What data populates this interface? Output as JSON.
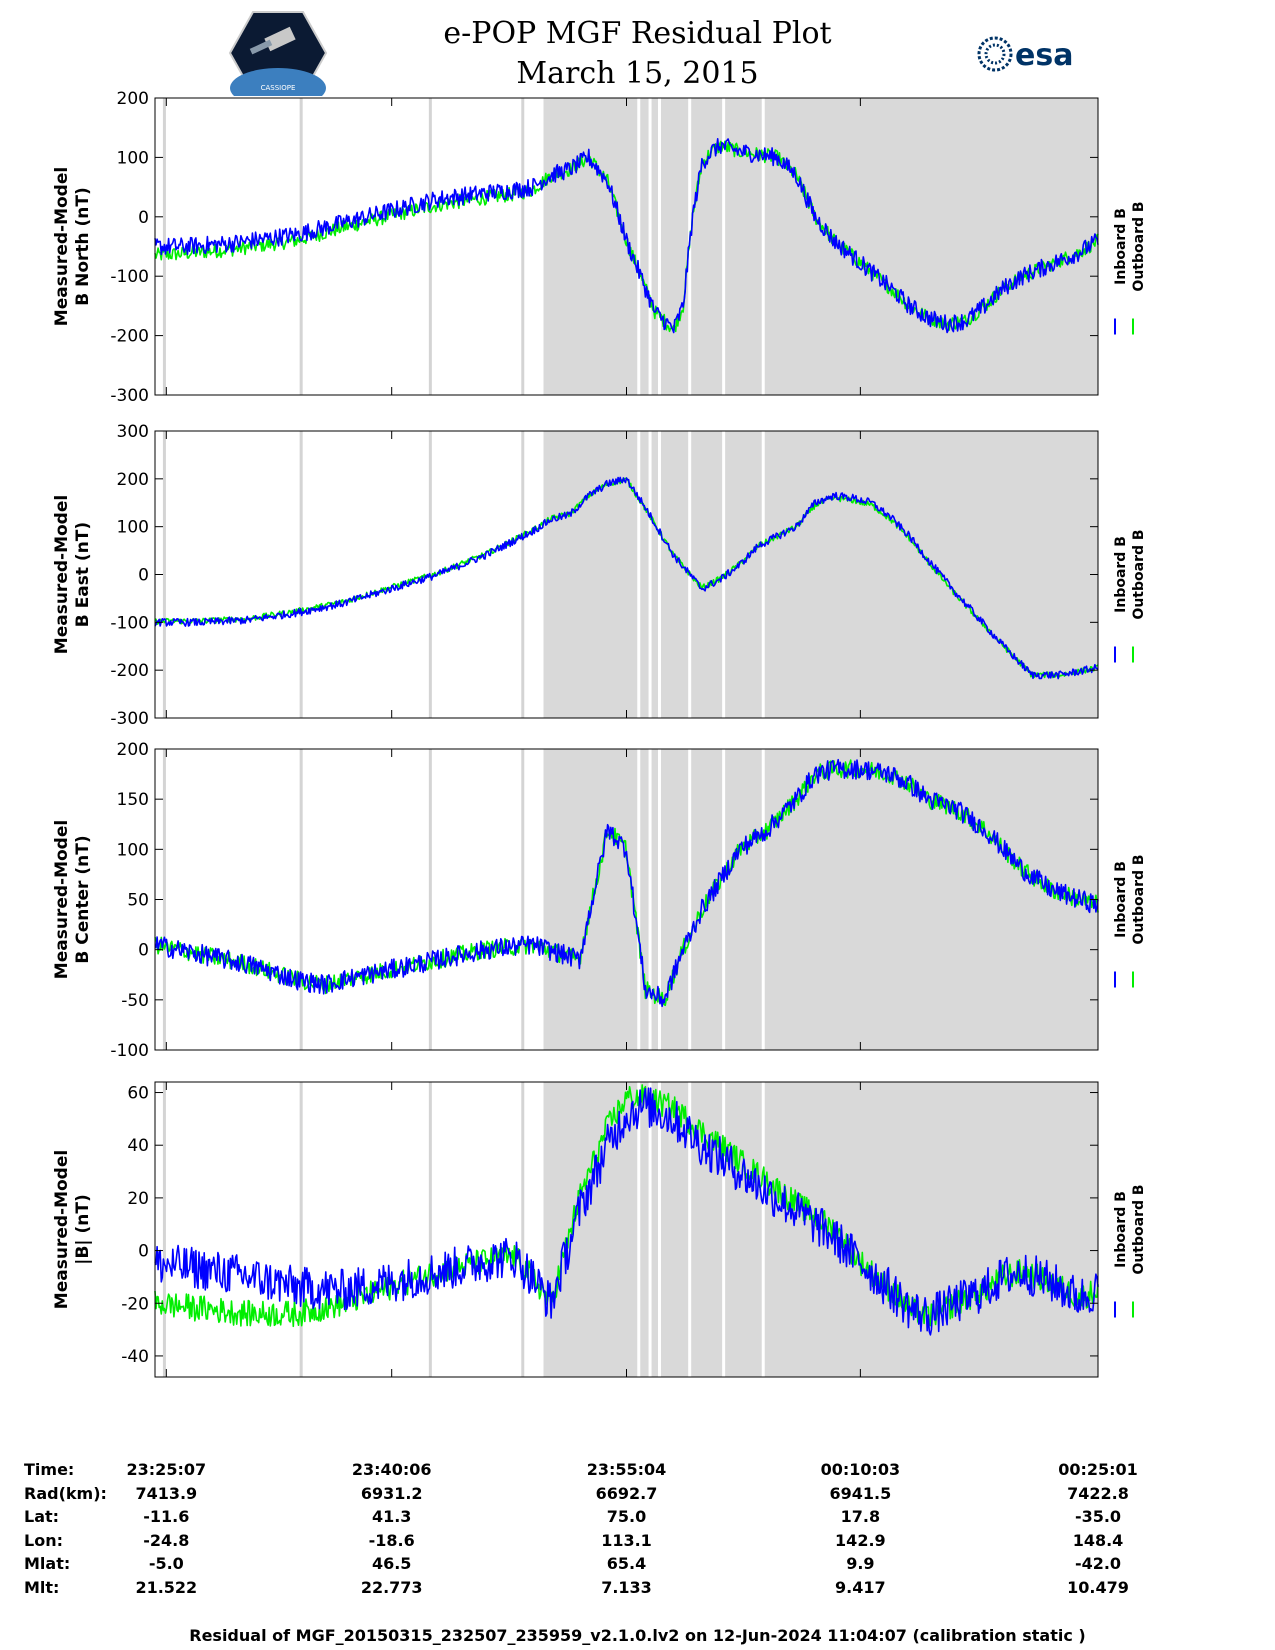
{
  "header": {
    "title": "e-POP MGF Residual Plot",
    "date": "March 15, 2015",
    "left_logo_icon": "cassiope-mission-logo",
    "left_logo_text": "CASSIOPE",
    "right_logo_icon": "esa-logo",
    "right_logo_text": "esa"
  },
  "colors": {
    "inboard": "#0000ff",
    "outboard": "#00ee00",
    "shade": "#d9d9d9",
    "gap_white": "#ffffff",
    "gap_gray": "#d4d4d4"
  },
  "legend": {
    "inboard": "Inboard B",
    "outboard": "Outboard B"
  },
  "chart_data": [
    {
      "type": "line",
      "title": "",
      "ylabel": [
        "Measured-Model",
        "B North (nT)"
      ],
      "ylim": [
        -300,
        200
      ],
      "yticks": [
        200,
        100,
        0,
        -100,
        -200,
        -300
      ],
      "series": [
        {
          "name": "Inboard B",
          "x": [
            0,
            0.03,
            0.08,
            0.15,
            0.2,
            0.25,
            0.3,
            0.35,
            0.38,
            0.4,
            0.42,
            0.44,
            0.46,
            0.48,
            0.5,
            0.53,
            0.55,
            0.56,
            0.57,
            0.58,
            0.59,
            0.6,
            0.62,
            0.64,
            0.66,
            0.68,
            0.7,
            0.72,
            0.75,
            0.78,
            0.8,
            0.82,
            0.84,
            0.86,
            0.88,
            0.9,
            0.92,
            0.95,
            0.98,
            1.0
          ],
          "y": [
            -50,
            -50,
            -45,
            -30,
            -10,
            10,
            30,
            40,
            45,
            50,
            70,
            80,
            100,
            60,
            -40,
            -160,
            -190,
            -150,
            0,
            90,
            110,
            120,
            110,
            105,
            100,
            70,
            0,
            -40,
            -80,
            -120,
            -150,
            -170,
            -180,
            -175,
            -150,
            -120,
            -100,
            -80,
            -60,
            -40
          ],
          "noise": 15
        },
        {
          "name": "Outboard B",
          "x": [
            0,
            0.03,
            0.08,
            0.15,
            0.2,
            0.25,
            0.3,
            0.35,
            0.38,
            0.4,
            0.42,
            0.44,
            0.46,
            0.48,
            0.5,
            0.53,
            0.55,
            0.56,
            0.57,
            0.58,
            0.59,
            0.6,
            0.62,
            0.64,
            0.66,
            0.68,
            0.7,
            0.72,
            0.75,
            0.78,
            0.8,
            0.82,
            0.84,
            0.86,
            0.88,
            0.9,
            0.92,
            0.95,
            0.98,
            1.0
          ],
          "y": [
            -65,
            -62,
            -55,
            -40,
            -18,
            2,
            20,
            32,
            38,
            45,
            70,
            80,
            100,
            60,
            -40,
            -160,
            -190,
            -150,
            0,
            90,
            110,
            120,
            110,
            105,
            100,
            70,
            0,
            -40,
            -80,
            -120,
            -150,
            -170,
            -180,
            -175,
            -150,
            -120,
            -100,
            -80,
            -60,
            -40
          ],
          "noise": 12
        }
      ]
    },
    {
      "type": "line",
      "title": "",
      "ylabel": [
        "Measured-Model",
        "B East (nT)"
      ],
      "ylim": [
        -300,
        300
      ],
      "yticks": [
        300,
        200,
        100,
        0,
        -100,
        -200,
        -300
      ],
      "series": [
        {
          "name": "Inboard B",
          "x": [
            0,
            0.05,
            0.1,
            0.15,
            0.2,
            0.25,
            0.3,
            0.35,
            0.38,
            0.4,
            0.42,
            0.44,
            0.46,
            0.48,
            0.5,
            0.52,
            0.55,
            0.58,
            0.6,
            0.62,
            0.64,
            0.66,
            0.68,
            0.7,
            0.72,
            0.74,
            0.76,
            0.78,
            0.8,
            0.82,
            0.85,
            0.9,
            0.93,
            0.96,
            1.0
          ],
          "y": [
            -100,
            -100,
            -95,
            -80,
            -60,
            -30,
            0,
            40,
            70,
            90,
            115,
            125,
            165,
            190,
            200,
            140,
            40,
            -30,
            -10,
            20,
            60,
            80,
            100,
            150,
            165,
            160,
            150,
            120,
            80,
            30,
            -40,
            -150,
            -210,
            -210,
            -195
          ],
          "noise": 8
        },
        {
          "name": "Outboard B",
          "x": [
            0,
            0.05,
            0.1,
            0.15,
            0.2,
            0.25,
            0.3,
            0.35,
            0.38,
            0.4,
            0.42,
            0.44,
            0.46,
            0.48,
            0.5,
            0.52,
            0.55,
            0.58,
            0.6,
            0.62,
            0.64,
            0.66,
            0.68,
            0.7,
            0.72,
            0.74,
            0.76,
            0.78,
            0.8,
            0.82,
            0.85,
            0.9,
            0.93,
            0.96,
            1.0
          ],
          "y": [
            -98,
            -97,
            -92,
            -77,
            -57,
            -27,
            3,
            42,
            72,
            92,
            117,
            127,
            165,
            190,
            198,
            138,
            40,
            -28,
            -8,
            22,
            60,
            80,
            100,
            145,
            160,
            155,
            145,
            115,
            76,
            26,
            -44,
            -150,
            -210,
            -210,
            -195
          ],
          "noise": 6
        }
      ]
    },
    {
      "type": "line",
      "title": "",
      "ylabel": [
        "Measured-Model",
        "B Center (nT)"
      ],
      "ylim": [
        -100,
        200
      ],
      "yticks": [
        200,
        150,
        100,
        50,
        0,
        -50,
        -100
      ],
      "series": [
        {
          "name": "Inboard B",
          "x": [
            0,
            0.05,
            0.1,
            0.15,
            0.18,
            0.2,
            0.25,
            0.3,
            0.35,
            0.4,
            0.45,
            0.48,
            0.5,
            0.52,
            0.54,
            0.56,
            0.58,
            0.6,
            0.62,
            0.65,
            0.68,
            0.7,
            0.72,
            0.75,
            0.78,
            0.8,
            0.82,
            0.85,
            0.88,
            0.9,
            0.92,
            0.95,
            0.98,
            1.0
          ],
          "y": [
            5,
            -5,
            -15,
            -30,
            -35,
            -30,
            -20,
            -10,
            0,
            5,
            -10,
            120,
            100,
            -40,
            -50,
            0,
            40,
            70,
            100,
            120,
            150,
            175,
            180,
            180,
            175,
            165,
            150,
            140,
            120,
            100,
            80,
            60,
            50,
            45
          ],
          "noise": 10
        },
        {
          "name": "Outboard B",
          "x": [
            0,
            0.05,
            0.1,
            0.15,
            0.18,
            0.2,
            0.25,
            0.3,
            0.35,
            0.4,
            0.45,
            0.48,
            0.5,
            0.52,
            0.54,
            0.56,
            0.58,
            0.6,
            0.62,
            0.65,
            0.68,
            0.7,
            0.72,
            0.75,
            0.78,
            0.8,
            0.82,
            0.85,
            0.88,
            0.9,
            0.92,
            0.95,
            0.98,
            1.0
          ],
          "y": [
            5,
            -5,
            -15,
            -30,
            -35,
            -30,
            -20,
            -10,
            0,
            5,
            -10,
            120,
            100,
            -40,
            -50,
            0,
            40,
            70,
            100,
            120,
            150,
            175,
            180,
            180,
            175,
            165,
            150,
            140,
            120,
            100,
            80,
            60,
            50,
            45
          ],
          "noise": 9
        }
      ]
    },
    {
      "type": "line",
      "title": "",
      "ylabel": [
        "Measured-Model",
        "|B| (nT)"
      ],
      "ylim": [
        -48,
        64
      ],
      "yticks": [
        60,
        40,
        20,
        0,
        -20,
        -40
      ],
      "series": [
        {
          "name": "Inboard B",
          "x": [
            0,
            0.05,
            0.1,
            0.15,
            0.2,
            0.25,
            0.3,
            0.35,
            0.38,
            0.4,
            0.42,
            0.45,
            0.48,
            0.5,
            0.52,
            0.55,
            0.58,
            0.6,
            0.62,
            0.65,
            0.68,
            0.7,
            0.72,
            0.75,
            0.78,
            0.8,
            0.82,
            0.85,
            0.88,
            0.9,
            0.92,
            0.95,
            0.98,
            1.0
          ],
          "y": [
            -5,
            -7,
            -10,
            -14,
            -15,
            -12,
            -8,
            -4,
            -2,
            -10,
            -20,
            15,
            40,
            52,
            55,
            50,
            40,
            35,
            30,
            22,
            15,
            10,
            5,
            -5,
            -15,
            -22,
            -25,
            -20,
            -15,
            -10,
            -8,
            -12,
            -18,
            -15
          ],
          "noise": 8
        },
        {
          "name": "Outboard B",
          "x": [
            0,
            0.05,
            0.1,
            0.15,
            0.2,
            0.25,
            0.3,
            0.35,
            0.38,
            0.4,
            0.42,
            0.45,
            0.48,
            0.5,
            0.52,
            0.55,
            0.58,
            0.6,
            0.62,
            0.65,
            0.68,
            0.7,
            0.72,
            0.75,
            0.78,
            0.8,
            0.82,
            0.85,
            0.88,
            0.9,
            0.92,
            0.95,
            0.98,
            1.0
          ],
          "y": [
            -20,
            -22,
            -24,
            -24,
            -20,
            -14,
            -8,
            -4,
            -2,
            -10,
            -20,
            20,
            47,
            58,
            58,
            54,
            45,
            40,
            34,
            26,
            18,
            13,
            8,
            -5,
            -15,
            -22,
            -25,
            -20,
            -15,
            -10,
            -8,
            -12,
            -18,
            -15
          ],
          "noise": 5
        }
      ]
    }
  ],
  "shading": {
    "gaps_gray": [
      0.01,
      0.155,
      0.292,
      0.39
    ],
    "gaps_white": [
      0.513,
      0.525,
      0.535,
      0.567,
      0.603,
      0.645
    ]
  },
  "info": {
    "labels": [
      "Time:",
      "Rad(km):",
      "Lat:",
      "Lon:",
      "Mlat:",
      "Mlt:"
    ],
    "columns": [
      [
        "23:25:07",
        "7413.9",
        "-11.6",
        "-24.8",
        "-5.0",
        "21.522"
      ],
      [
        "23:40:06",
        "6931.2",
        "41.3",
        "-18.6",
        "46.5",
        "22.773"
      ],
      [
        "23:55:04",
        "6692.7",
        "75.0",
        "113.1",
        "65.4",
        "7.133"
      ],
      [
        "00:10:03",
        "6941.5",
        "17.8",
        "142.9",
        "9.9",
        "9.417"
      ],
      [
        "00:25:01",
        "7422.8",
        "-35.0",
        "148.4",
        "-42.0",
        "10.479"
      ]
    ]
  },
  "footer": "Residual of MGF_20150315_232507_235959_v2.1.0.lv2 on 12-Jun-2024 11:04:07 (calibration static )"
}
